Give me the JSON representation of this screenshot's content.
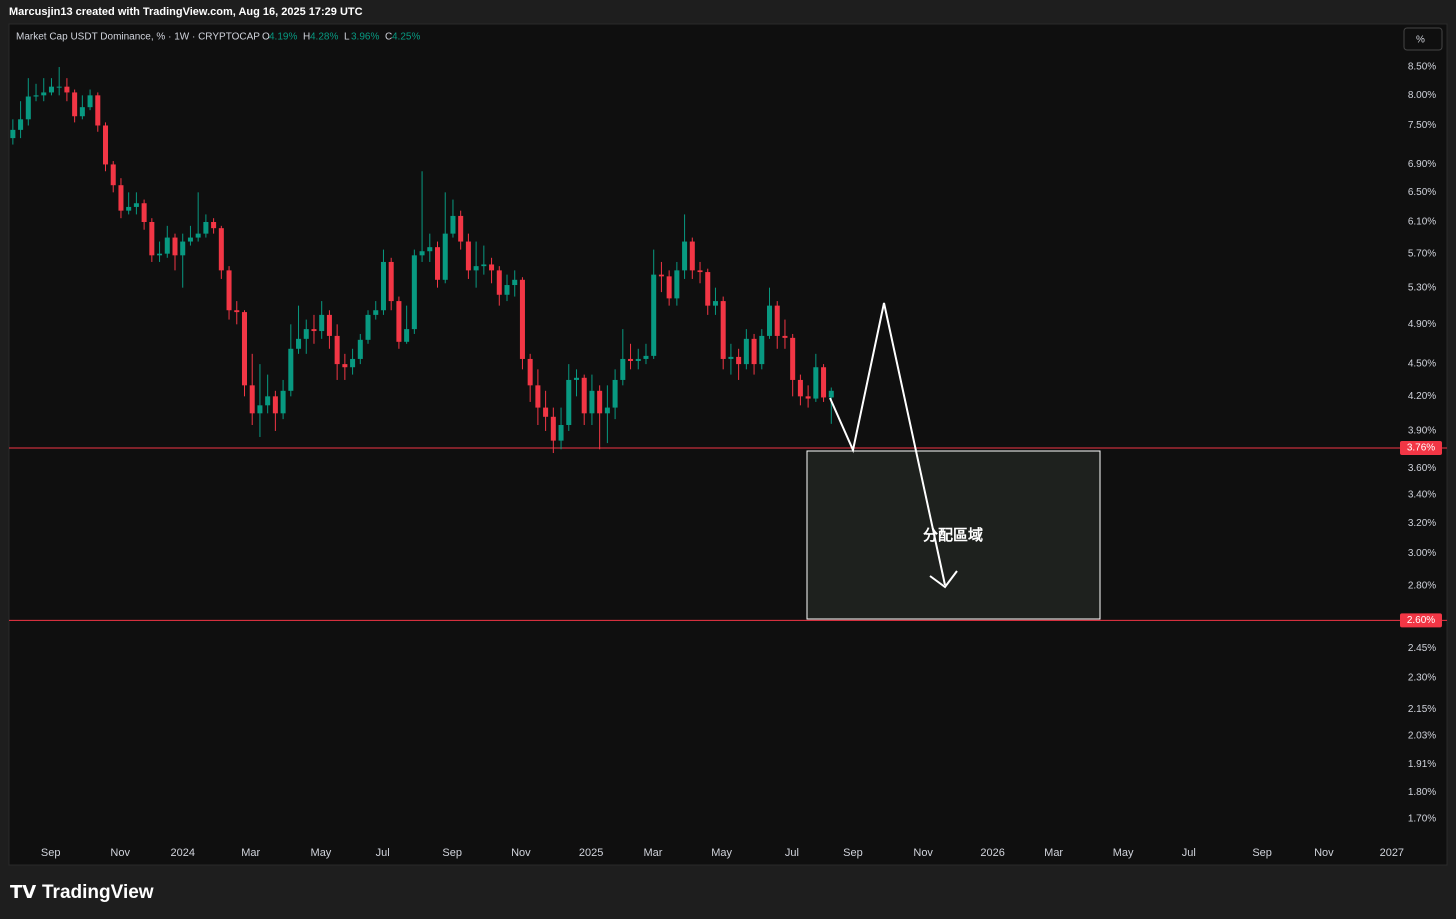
{
  "header": {
    "text": "Marcusjin13 created with TradingView.com, Aug 16, 2025 17:29 UTC"
  },
  "chart_data": {
    "type": "candlestick",
    "legend": {
      "title": "Market Cap USDT Dominance, % · 1W · CRYPTOCAP",
      "ohlc": [
        {
          "key": "O",
          "label": "4.19%"
        },
        {
          "key": "H",
          "label": "4.28%"
        },
        {
          "key": "L",
          "label": "3.96%"
        },
        {
          "key": "C",
          "label": "4.25%"
        }
      ]
    },
    "scale_button": "%",
    "up_color": "#089981",
    "down_color": "#f23645",
    "log_scale": true,
    "open": [
      7.3,
      7.43,
      7.6,
      7.98,
      8.0,
      8.05,
      8.15,
      8.15,
      8.05,
      7.65,
      7.8,
      8.0,
      7.5,
      6.9,
      6.6,
      6.25,
      6.3,
      6.35,
      6.1,
      5.68,
      5.7,
      5.9,
      5.68,
      5.85,
      5.9,
      5.95,
      6.1,
      6.02,
      5.5,
      5.05,
      5.03,
      4.3,
      4.05,
      4.12,
      4.2,
      4.05,
      4.25,
      4.65,
      4.75,
      4.85,
      4.83,
      5.0,
      4.78,
      4.5,
      4.47,
      4.55,
      4.74,
      5.0,
      5.05,
      5.6,
      5.15,
      4.72,
      4.85,
      5.68,
      5.73,
      5.78,
      5.39,
      5.95,
      6.18,
      5.85,
      5.5,
      5.55,
      5.57,
      5.5,
      5.22,
      5.33,
      5.39,
      4.55,
      4.3,
      4.1,
      4.02,
      3.82,
      3.95,
      4.35,
      4.37,
      4.05,
      4.25,
      4.05,
      4.1,
      4.35,
      4.55,
      4.53,
      4.55,
      4.58,
      5.45,
      5.43,
      5.18,
      5.5,
      5.85,
      5.5,
      5.48,
      5.1,
      5.15,
      4.55,
      4.57,
      4.5,
      4.75,
      4.5,
      4.78,
      5.1,
      4.78,
      4.76,
      4.35,
      4.2,
      4.18,
      4.47,
      4.19
    ],
    "high": [
      7.6,
      7.9,
      8.3,
      8.2,
      8.3,
      8.3,
      8.5,
      8.3,
      8.1,
      8.0,
      8.1,
      8.05,
      7.55,
      6.95,
      6.7,
      6.5,
      6.5,
      6.4,
      6.15,
      5.85,
      6.05,
      5.95,
      5.95,
      6.05,
      6.5,
      6.2,
      6.15,
      6.05,
      5.55,
      5.15,
      5.05,
      4.6,
      4.5,
      4.4,
      4.25,
      4.35,
      4.9,
      5.1,
      4.95,
      5.0,
      5.15,
      5.05,
      4.9,
      4.6,
      4.65,
      4.8,
      5.05,
      5.15,
      5.75,
      5.65,
      5.2,
      5.1,
      5.75,
      6.8,
      5.95,
      5.85,
      6.5,
      6.4,
      6.25,
      5.95,
      5.85,
      5.8,
      5.65,
      5.55,
      5.45,
      5.5,
      5.42,
      4.6,
      4.45,
      4.25,
      4.1,
      4.1,
      4.5,
      4.45,
      4.4,
      4.4,
      4.3,
      4.3,
      4.45,
      4.85,
      4.7,
      4.65,
      4.7,
      5.75,
      5.6,
      5.5,
      5.6,
      6.2,
      5.9,
      5.6,
      5.52,
      5.3,
      5.2,
      4.7,
      4.65,
      4.85,
      4.8,
      4.85,
      5.3,
      5.15,
      4.95,
      4.8,
      4.4,
      4.3,
      4.6,
      4.5,
      4.28
    ],
    "low": [
      7.2,
      7.3,
      7.5,
      7.9,
      7.9,
      8.0,
      8.0,
      7.9,
      7.55,
      7.6,
      7.75,
      7.4,
      6.8,
      6.5,
      6.15,
      6.2,
      6.2,
      6.0,
      5.6,
      5.6,
      5.65,
      5.5,
      5.3,
      5.8,
      5.85,
      5.9,
      5.95,
      5.4,
      4.95,
      4.9,
      4.2,
      3.95,
      3.85,
      4.05,
      3.9,
      4.0,
      4.2,
      4.6,
      4.6,
      4.7,
      4.75,
      4.65,
      4.35,
      4.35,
      4.4,
      4.5,
      4.7,
      4.95,
      5.0,
      5.05,
      4.65,
      4.7,
      4.8,
      5.6,
      5.6,
      5.3,
      5.35,
      5.9,
      5.75,
      5.4,
      5.3,
      5.45,
      5.35,
      5.1,
      5.15,
      5.2,
      4.45,
      4.15,
      3.95,
      3.9,
      3.72,
      3.75,
      3.9,
      4.2,
      3.95,
      3.95,
      3.75,
      3.8,
      4.0,
      4.3,
      4.45,
      4.45,
      4.5,
      4.55,
      5.25,
      5.1,
      5.1,
      5.4,
      5.4,
      5.35,
      5.0,
      5.0,
      4.45,
      4.4,
      4.35,
      4.45,
      4.4,
      4.45,
      4.75,
      4.65,
      4.65,
      4.2,
      4.12,
      4.1,
      4.15,
      4.15,
      3.96
    ],
    "close": [
      7.43,
      7.6,
      7.98,
      8.0,
      8.05,
      8.15,
      8.15,
      8.05,
      7.65,
      7.8,
      8.0,
      7.5,
      6.9,
      6.6,
      6.25,
      6.3,
      6.35,
      6.1,
      5.68,
      5.7,
      5.9,
      5.68,
      5.85,
      5.9,
      5.95,
      6.1,
      6.02,
      5.5,
      5.05,
      5.03,
      4.3,
      4.05,
      4.12,
      4.2,
      4.05,
      4.25,
      4.65,
      4.75,
      4.85,
      4.83,
      5.0,
      4.78,
      4.5,
      4.47,
      4.55,
      4.74,
      5.0,
      5.05,
      5.6,
      5.15,
      4.72,
      4.85,
      5.68,
      5.73,
      5.78,
      5.39,
      5.95,
      6.18,
      5.85,
      5.5,
      5.55,
      5.57,
      5.5,
      5.22,
      5.33,
      5.39,
      4.55,
      4.3,
      4.1,
      4.02,
      3.82,
      3.95,
      4.35,
      4.37,
      4.05,
      4.25,
      4.05,
      4.1,
      4.35,
      4.55,
      4.53,
      4.55,
      4.58,
      5.45,
      5.43,
      5.18,
      5.5,
      5.85,
      5.5,
      5.48,
      5.1,
      5.15,
      4.55,
      4.57,
      4.5,
      4.75,
      4.5,
      4.78,
      5.1,
      4.78,
      4.76,
      4.35,
      4.2,
      4.18,
      4.47,
      4.19,
      4.25
    ],
    "ylim": [
      1.54,
      9.32
    ],
    "yticks": [
      {
        "value": 8.5,
        "label": "8.50%"
      },
      {
        "value": 8.0,
        "label": "8.00%"
      },
      {
        "value": 7.5,
        "label": "7.50%"
      },
      {
        "value": 6.9,
        "label": "6.90%"
      },
      {
        "value": 6.5,
        "label": "6.50%"
      },
      {
        "value": 6.1,
        "label": "6.10%"
      },
      {
        "value": 5.7,
        "label": "5.70%"
      },
      {
        "value": 5.3,
        "label": "5.30%"
      },
      {
        "value": 4.9,
        "label": "4.90%"
      },
      {
        "value": 4.5,
        "label": "4.50%"
      },
      {
        "value": 4.2,
        "label": "4.20%"
      },
      {
        "value": 3.9,
        "label": "3.90%"
      },
      {
        "value": 3.6,
        "label": "3.60%"
      },
      {
        "value": 3.4,
        "label": "3.40%"
      },
      {
        "value": 3.2,
        "label": "3.20%"
      },
      {
        "value": 3.0,
        "label": "3.00%"
      },
      {
        "value": 2.8,
        "label": "2.80%"
      },
      {
        "value": 2.45,
        "label": "2.45%"
      },
      {
        "value": 2.3,
        "label": "2.30%"
      },
      {
        "value": 2.15,
        "label": "2.15%"
      },
      {
        "value": 2.03,
        "label": "2.03%"
      },
      {
        "value": 1.91,
        "label": "1.91%"
      },
      {
        "value": 1.8,
        "label": "1.80%"
      },
      {
        "value": 1.7,
        "label": "1.70%"
      }
    ],
    "xlim": [
      -0.5,
      179.4
    ],
    "xticks": [
      {
        "value": 4.9,
        "label": "Sep"
      },
      {
        "value": 13.9,
        "label": "Nov"
      },
      {
        "value": 22.0,
        "label": "2024"
      },
      {
        "value": 30.8,
        "label": "Mar"
      },
      {
        "value": 39.9,
        "label": "May"
      },
      {
        "value": 47.9,
        "label": "Jul"
      },
      {
        "value": 56.9,
        "label": "Sep"
      },
      {
        "value": 65.8,
        "label": "Nov"
      },
      {
        "value": 74.9,
        "label": "2025"
      },
      {
        "value": 82.9,
        "label": "Mar"
      },
      {
        "value": 91.8,
        "label": "May"
      },
      {
        "value": 100.9,
        "label": "Jul"
      },
      {
        "value": 108.8,
        "label": "Sep"
      },
      {
        "value": 117.9,
        "label": "Nov"
      },
      {
        "value": 126.9,
        "label": "2026"
      },
      {
        "value": 134.8,
        "label": "Mar"
      },
      {
        "value": 143.8,
        "label": "May"
      },
      {
        "value": 152.3,
        "label": "Jul"
      },
      {
        "value": 161.8,
        "label": "Sep"
      },
      {
        "value": 169.8,
        "label": "Nov"
      },
      {
        "value": 178.6,
        "label": "2027"
      }
    ],
    "hlines": [
      {
        "value": 3.76,
        "label": "3.76%",
        "color": "#f23645"
      },
      {
        "value": 2.6,
        "label": "2.60%",
        "color": "#f23645"
      }
    ],
    "annotation": "分配區域"
  },
  "footer": {
    "brand": "TradingView"
  }
}
